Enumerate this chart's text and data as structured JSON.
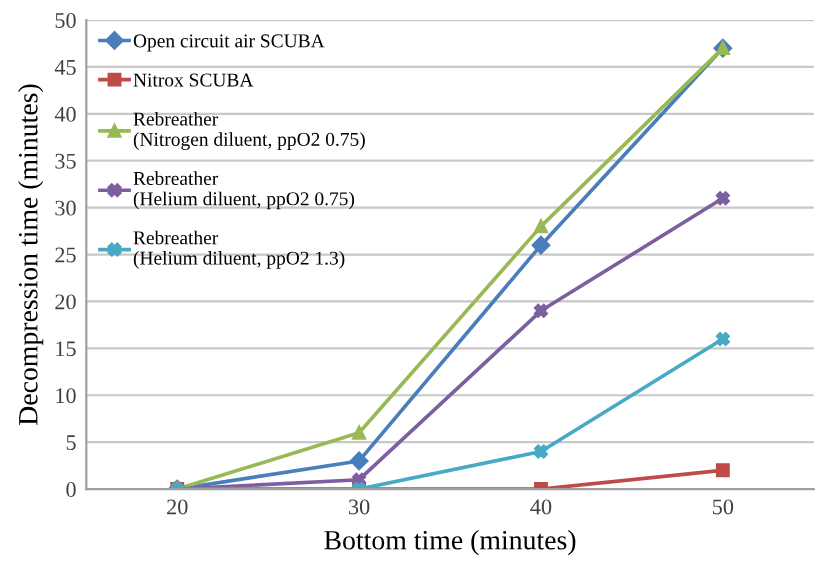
{
  "chart_data": {
    "type": "line",
    "xlabel": "Bottom time (minutes)",
    "ylabel": "Decompression time (minutes)",
    "categories": [
      "20",
      "30",
      "40",
      "50"
    ],
    "series": [
      {
        "name": "Open circuit air SCUBA",
        "color": "#4a7ebb",
        "marker": "diamond",
        "values": [
          0,
          3,
          26,
          47
        ]
      },
      {
        "name": "Nitrox SCUBA",
        "color": "#be4b48",
        "marker": "square",
        "values": [
          0,
          0,
          0,
          2
        ]
      },
      {
        "name": "Rebreather\n(Nitrogen diluent, ppO2 0.75)",
        "color": "#98b954",
        "marker": "triangle",
        "values": [
          0,
          6,
          28,
          47
        ]
      },
      {
        "name": "Rebreather\n(Helium diluent, ppO2 0.75)",
        "color": "#7d5fa0",
        "marker": "cross",
        "values": [
          0,
          1,
          19,
          31
        ]
      },
      {
        "name": "Rebreather\n(Helium diluent, ppO2 1.3)",
        "color": "#46aac5",
        "marker": "cross",
        "values": [
          0,
          0,
          4,
          16
        ]
      }
    ],
    "ylim": [
      0,
      50
    ],
    "yticks": [
      0,
      5,
      10,
      15,
      20,
      25,
      30,
      35,
      40,
      45,
      50
    ],
    "grid": "y",
    "legend": "top left",
    "line_style": "solid"
  }
}
